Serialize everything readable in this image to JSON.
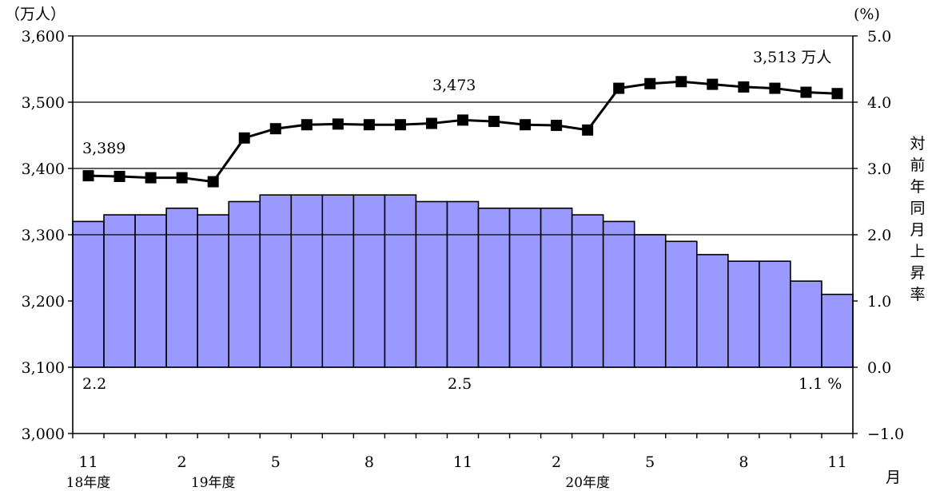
{
  "chart_data": {
    "type": "bar+line",
    "left_axis": {
      "unit_label": "（万人）",
      "ylim": [
        3000,
        3600
      ],
      "ticks": [
        3000,
        3100,
        3200,
        3300,
        3400,
        3500,
        3600
      ],
      "tick_labels": [
        "3,000",
        "3,100",
        "3,200",
        "3,300",
        "3,400",
        "3,500",
        "3,600"
      ]
    },
    "right_axis": {
      "unit_label": "(%)",
      "title_vertical": "対前年同月上昇率",
      "ylim": [
        -1.0,
        5.0
      ],
      "ticks": [
        -1.0,
        0.0,
        1.0,
        2.0,
        3.0,
        4.0,
        5.0
      ],
      "tick_labels": [
        "−1.0",
        "0.0",
        "1.0",
        "2.0",
        "3.0",
        "4.0",
        "5.0"
      ]
    },
    "gridlines_left_values": [
      3600,
      3500,
      3400,
      3300,
      3100
    ],
    "x_axis": {
      "month_tick_labels": [
        "11",
        "2",
        "5",
        "8",
        "11",
        "2",
        "5",
        "8",
        "11"
      ],
      "month_tick_indices": [
        0,
        3,
        6,
        9,
        12,
        15,
        18,
        21,
        24
      ],
      "month_unit_label": "月",
      "fiscal_year_labels": [
        {
          "label": "18年度",
          "index": 0
        },
        {
          "label": "19年度",
          "index": 4
        },
        {
          "label": "20年度",
          "index": 16
        }
      ]
    },
    "bar_series": {
      "name": "対前年同月上昇率",
      "axis": "right",
      "values": [
        2.2,
        2.3,
        2.3,
        2.4,
        2.3,
        2.5,
        2.6,
        2.6,
        2.6,
        2.6,
        2.6,
        2.5,
        2.5,
        2.4,
        2.4,
        2.4,
        2.3,
        2.2,
        2.0,
        1.9,
        1.7,
        1.6,
        1.6,
        1.3,
        1.1
      ]
    },
    "line_series": {
      "name": "万人",
      "axis": "left",
      "values": [
        3389,
        3388,
        3386,
        3386,
        3380,
        3446,
        3460,
        3466,
        3467,
        3466,
        3466,
        3468,
        3473,
        3471,
        3466,
        3465,
        3458,
        3521,
        3528,
        3531,
        3527,
        3523,
        3521,
        3515,
        3513
      ]
    },
    "annotations": {
      "line_first": "3,389",
      "line_mid": "3,473",
      "line_last": "3,513 万人",
      "bar_first": "2.2",
      "bar_mid": "2.5",
      "bar_last": "1.1 %"
    }
  }
}
